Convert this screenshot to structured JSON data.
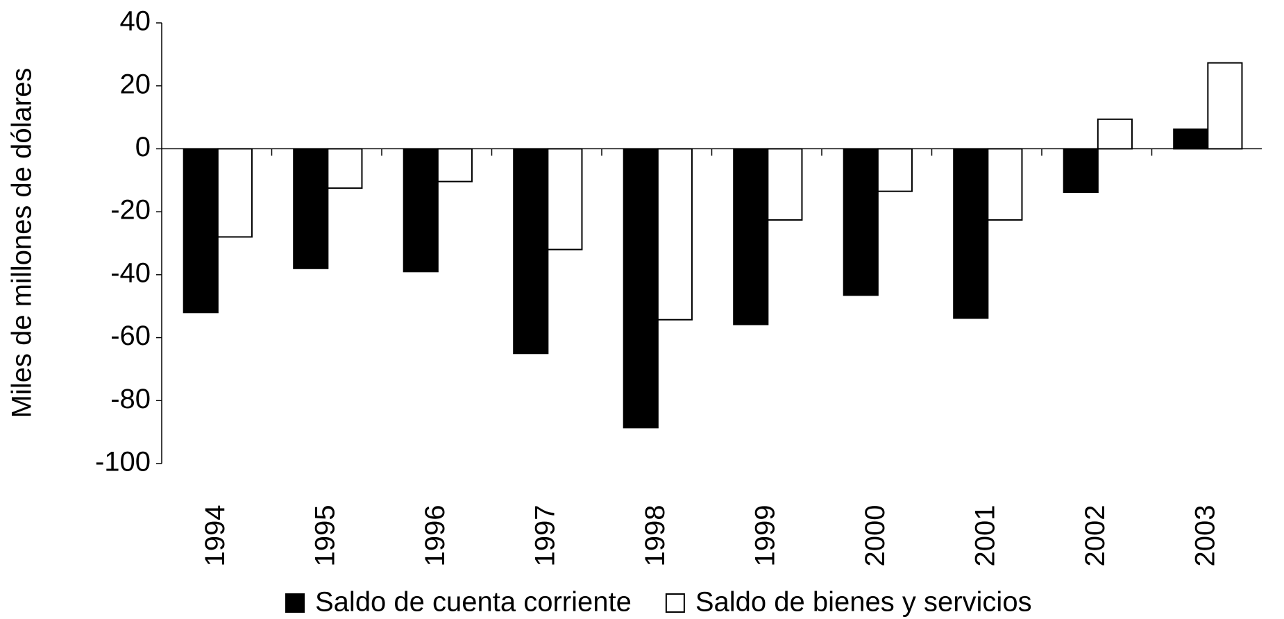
{
  "chart_data": {
    "type": "bar",
    "y_label": "Miles de millones de dólares",
    "categories": [
      "1994",
      "1995",
      "1996",
      "1997",
      "1998",
      "1999",
      "2000",
      "2001",
      "2002",
      "2003"
    ],
    "series": [
      {
        "name": "Saldo de cuenta corriente",
        "color": "#000000",
        "values": [
          -52,
          -38,
          -39,
          -65,
          -88.6,
          -55.8,
          -46.5,
          -53.8,
          -13.8,
          6.2
        ]
      },
      {
        "name": "Saldo de bienes y servicios",
        "color": "#ffffff",
        "values": [
          -28,
          -12.5,
          -10.4,
          -32,
          -54.3,
          -22.6,
          -13.5,
          -22.6,
          9.4,
          27.3
        ]
      }
    ],
    "ylim": [
      -100,
      40
    ],
    "yticks": [
      -100,
      -80,
      -60,
      -40,
      -20,
      0,
      20,
      40
    ]
  }
}
